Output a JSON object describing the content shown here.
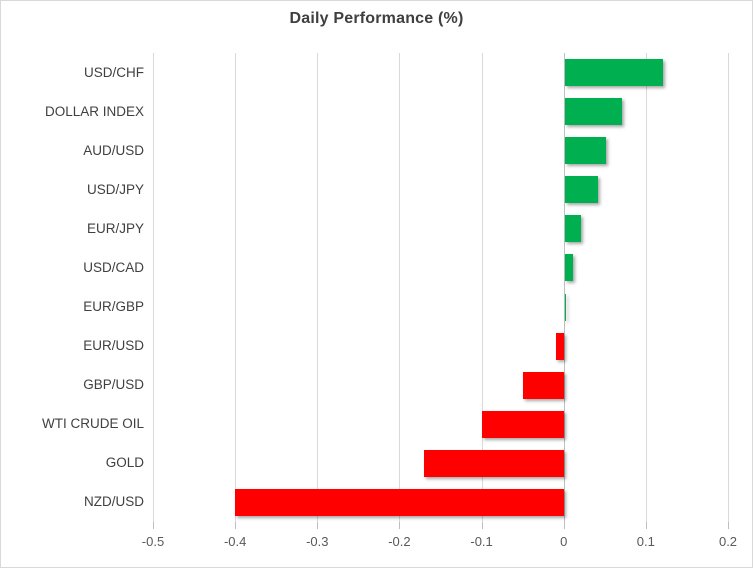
{
  "chart_data": {
    "type": "bar",
    "orientation": "horizontal",
    "title": "Daily Performance (%)",
    "categories": [
      "USD/CHF",
      "DOLLAR INDEX",
      "AUD/USD",
      "USD/JPY",
      "EUR/JPY",
      "USD/CAD",
      "EUR/GBP",
      "EUR/USD",
      "GBP/USD",
      "WTI CRUDE OIL",
      "GOLD",
      "NZD/USD"
    ],
    "values": [
      0.12,
      0.07,
      0.05,
      0.04,
      0.02,
      0.01,
      0.002,
      -0.01,
      -0.05,
      -0.1,
      -0.17,
      -0.4
    ],
    "xlabel": "",
    "ylabel": "",
    "xlim": [
      -0.5,
      0.2
    ],
    "xticks": [
      -0.5,
      -0.4,
      -0.3,
      -0.2,
      -0.1,
      0,
      0.1,
      0.2
    ],
    "xtick_labels": [
      "-0.5",
      "-0.4",
      "-0.3",
      "-0.2",
      "-0.1",
      "0",
      "0.1",
      "0.2"
    ],
    "grid": true,
    "legend": "none",
    "positive_color": "#00B050",
    "negative_color": "#FF0000",
    "gridline_color": "#D9D9D9",
    "axis_line_color": "#BFBFBF",
    "title_color": "#3F3F3F",
    "category_label_color": "#404040",
    "tick_label_color": "#595959",
    "background_color": "#FFFFFF",
    "border_color": "#D9D9D9"
  }
}
